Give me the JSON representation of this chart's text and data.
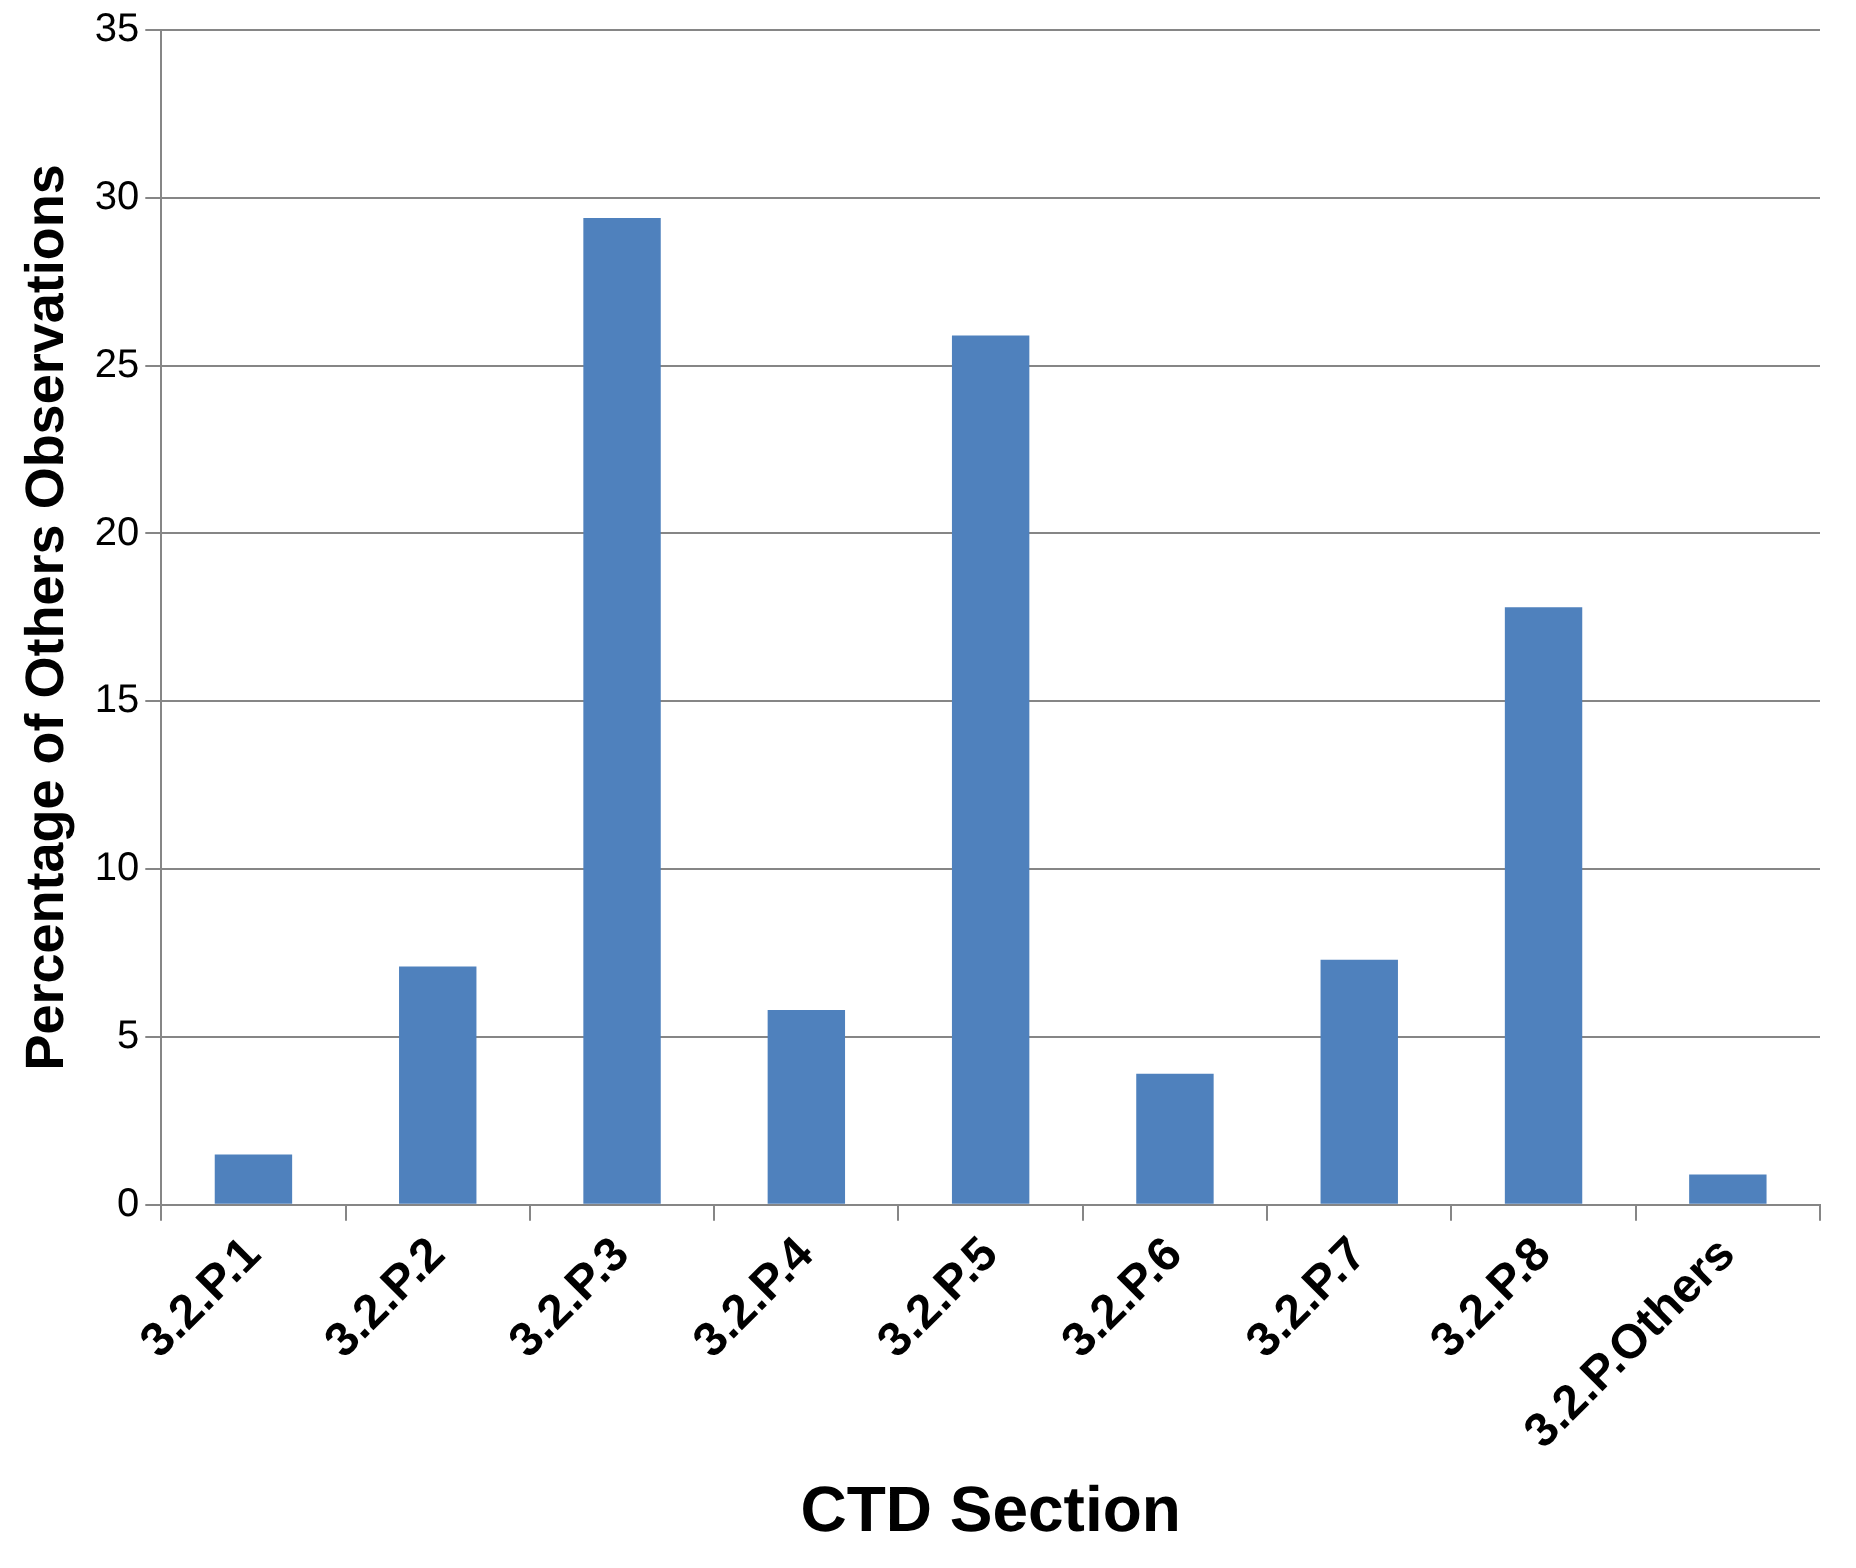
{
  "chart_data": {
    "type": "bar",
    "xlabel": "CTD Section",
    "ylabel": "Percentage of Others Observations",
    "categories": [
      "3.2.P.1",
      "3.2.P.2",
      "3.2.P.3",
      "3.2.P.4",
      "3.2.P.5",
      "3.2.P.6",
      "3.2.P.7",
      "3.2.P.8",
      "3.2.P.Others"
    ],
    "values": [
      1.5,
      7.1,
      29.4,
      5.8,
      25.9,
      3.9,
      7.3,
      17.8,
      0.9
    ],
    "color": "#4f81bd",
    "ylim": [
      0,
      35
    ],
    "yticks": [
      0,
      5,
      10,
      15,
      20,
      25,
      30,
      35
    ],
    "grid": "y",
    "legend": false
  }
}
